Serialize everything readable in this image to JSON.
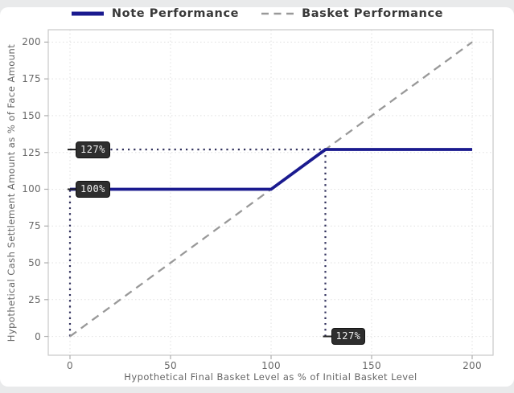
{
  "legend": {
    "items": [
      {
        "label": "Note Performance",
        "style": "solid",
        "color": "#1a1a8f"
      },
      {
        "label": "Basket Performance",
        "style": "dashed",
        "color": "#999999"
      }
    ]
  },
  "chart_data": {
    "type": "line",
    "title": "",
    "xlabel": "Hypothetical Final Basket Level as % of Initial Basket Level",
    "ylabel": "Hypothetical Cash Settlement Amount as % of Face Amount",
    "xlim": [
      -10.8,
      210.4
    ],
    "ylim": [
      -12.8,
      208.4
    ],
    "xticks": [
      0,
      50,
      100,
      150,
      200
    ],
    "yticks": [
      0,
      25,
      50,
      75,
      100,
      125,
      150,
      175,
      200
    ],
    "grid": true,
    "legend_position": "top",
    "series": [
      {
        "name": "Basket Performance",
        "style": "dashed",
        "color": "#999999",
        "width": 2.3,
        "points": [
          [
            0,
            0
          ],
          [
            200,
            200
          ]
        ]
      },
      {
        "name": "Note Performance",
        "style": "solid",
        "color": "#1a1a8f",
        "width": 3.8,
        "points": [
          [
            0,
            100
          ],
          [
            100,
            100
          ],
          [
            127,
            127
          ],
          [
            200,
            127
          ]
        ]
      }
    ],
    "guides": [
      {
        "orient": "v",
        "at": 0,
        "from": 0,
        "to": 100,
        "color": "#30305c"
      },
      {
        "orient": "h",
        "at": 127,
        "from": 0,
        "to": 127,
        "color": "#30305c"
      },
      {
        "orient": "v",
        "at": 127,
        "from": 0,
        "to": 127,
        "color": "#30305c"
      }
    ],
    "annotations": [
      {
        "text": "127%",
        "x": 0,
        "y": 127
      },
      {
        "text": "100%",
        "x": 0,
        "y": 100
      },
      {
        "text": "127%",
        "x": 127,
        "y": 0
      }
    ]
  },
  "colors": {
    "page_background": "#e9eaeb",
    "card_background": "#ffffff",
    "grid": "#e0e0e0",
    "plot_border": "#c9c9c9",
    "tick_mark": "#aeaeae",
    "tick_text": "#696969",
    "axis_title_text": "#666666",
    "legend_text": "#383838",
    "annotation_bg": "#2e2e2e",
    "annotation_text": "#f2f2f2"
  }
}
